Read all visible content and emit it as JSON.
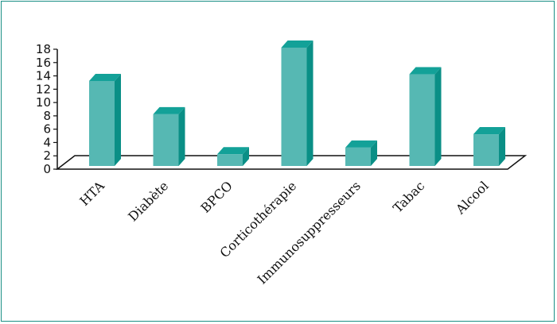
{
  "chart_data": {
    "type": "bar",
    "title": "",
    "xlabel": "",
    "ylabel": "",
    "categories": [
      "HTA",
      "Diabète",
      "BPCO",
      "Corticothérapie",
      "Immunosuppresseurs",
      "Tabac",
      "Alcool"
    ],
    "values": [
      13,
      8,
      2,
      18,
      3,
      14,
      5
    ],
    "ylim": [
      0,
      18
    ],
    "yticks": [
      "0",
      "2",
      "4",
      "6",
      "8",
      "10",
      "12",
      "14",
      "16",
      "18"
    ],
    "grid": false,
    "legend": "none",
    "bar_style": "3d",
    "colors": {
      "bar_front": "#56b8b3",
      "bar_side": "#0a8f86",
      "bar_top": "#13a198",
      "frame": "#1a8f85",
      "axis": "#111111"
    }
  }
}
